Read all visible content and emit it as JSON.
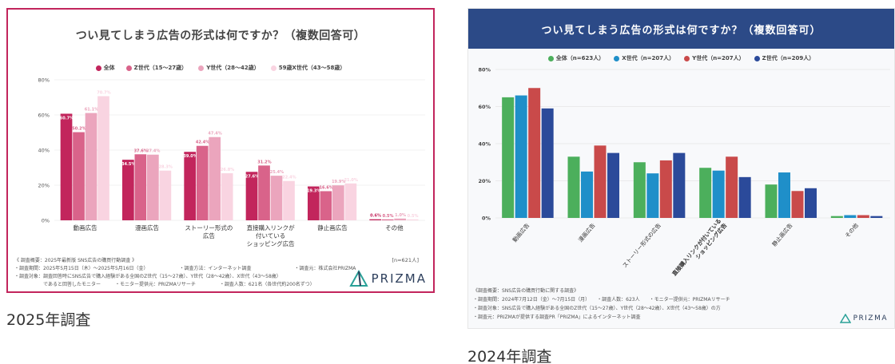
{
  "captions": {
    "a": "2025年調査",
    "b": "2024年調査"
  },
  "chart_data": [
    {
      "type": "bar",
      "title": "つい見てしまう広告の形式は何ですか？（複数回答可）",
      "categories": [
        "動画広告",
        "漫画広告",
        "ストーリー形式の広告",
        "直接購入リンクが付いているショッピング広告",
        "静止画広告",
        "その他"
      ],
      "category_lines": [
        [
          "動画広告"
        ],
        [
          "漫画広告"
        ],
        [
          "ストーリー形式の",
          "広告"
        ],
        [
          "直接購入リンクが",
          "付いている",
          "ショッピング広告"
        ],
        [
          "静止画広告"
        ],
        [
          "その他"
        ]
      ],
      "ylim": [
        0,
        80
      ],
      "yticks": [
        "0%",
        "20%",
        "40%",
        "60%",
        "80%"
      ],
      "series": [
        {
          "name": "全体",
          "color": "#c2255c",
          "values": [
            60.7,
            34.5,
            39.0,
            27.6,
            19.3,
            0.6
          ],
          "labels": [
            "60.7%",
            "34.5%",
            "39.0%",
            "27.6%",
            "19.3%",
            "0.6%"
          ]
        },
        {
          "name": "Z世代（15〜27歳）",
          "color": "#d9638a",
          "values": [
            50.2,
            37.6,
            42.4,
            31.2,
            16.6,
            0.5
          ],
          "labels": [
            "50.2%",
            "37.6%",
            "42.4%",
            "31.2%",
            "16.6%",
            "0.5%"
          ]
        },
        {
          "name": "Y世代（28〜42歳）",
          "color": "#eba5bd",
          "values": [
            61.1,
            37.4,
            47.4,
            25.4,
            19.9,
            1.0
          ],
          "labels": [
            "61.1%",
            "37.4%",
            "47.4%",
            "25.4%",
            "19.9%",
            "1.0%"
          ]
        },
        {
          "name": "59歳X世代（43〜58歳）",
          "color": "#f9d4e1",
          "values": [
            70.7,
            28.3,
            26.8,
            22.4,
            21.0,
            0.5
          ],
          "labels": [
            "70.7%",
            "28.3%",
            "26.8%",
            "22.4%",
            "21.0%",
            "0.5%"
          ]
        }
      ],
      "n_label": "[n=621人]",
      "notes": [
        "《 調査概要：2025年最新版 SNS広告の購買行動調査 》",
        "・調査期間：2025年5月15日（木）〜2025年5月16日（金）　　　　　　　・調査方法：インターネット調査　　　　　　　　　・調査元：株式会社PRIZMA",
        "・調査対象：調査回答時にSNS広告で購入経験がある全国のZ世代（15〜27歳）、Y世代（28〜42歳）、X世代（43〜58歳）",
        "　　　　　　であると回答したモニター　　　・モニター提供元：PRIZMAリサーチ　　　　　・調査人数：621名（各世代約200名ずつ）"
      ],
      "logo": "PRIZMA"
    },
    {
      "type": "bar",
      "title": "つい見てしまう広告の形式は何ですか？（複数回答可）",
      "categories": [
        "動画広告",
        "漫画広告",
        "ストーリー形式の広告",
        "直接購入リンクが付いているショッピング広告",
        "静止画広告",
        "その他"
      ],
      "category_lines": [
        [
          "動画広告"
        ],
        [
          "漫画広告"
        ],
        [
          "ストーリー形式の広告"
        ],
        [
          "直接購入リンクが付いている",
          "ショッピング広告"
        ],
        [
          "静止画広告"
        ],
        [
          "その他"
        ]
      ],
      "ylim": [
        0,
        80
      ],
      "yticks": [
        "0%",
        "20%",
        "40%",
        "60%",
        "80%"
      ],
      "series": [
        {
          "name": "全体（n=623人）",
          "color": "#4caf5c",
          "values": [
            65,
            33,
            30,
            27,
            18,
            1
          ]
        },
        {
          "name": "X世代（n=207人）",
          "color": "#1f8fc9",
          "values": [
            66,
            25,
            24,
            25.5,
            24.5,
            1.5
          ]
        },
        {
          "name": "Y世代（n=207人）",
          "color": "#c94a4a",
          "values": [
            70,
            39,
            31,
            33,
            14.5,
            1.5
          ]
        },
        {
          "name": "Z世代（n=209人）",
          "color": "#2b4a9a",
          "values": [
            59,
            35,
            35,
            22,
            16,
            1
          ]
        }
      ],
      "notes": [
        "《調査概要：SNS広告の購買行動に関する調査》",
        "・調査期間：2024年7月12日（金）〜7月15日（月）　　・調査人数：623人　　・モニター提供元：PRIZMAリサーチ",
        "・調査対象：SNS広告で購入経験がある全国のZ世代（15〜27歳）、Y世代（28〜42歳）、X世代（43〜58歳）の方",
        "・調査元：PRIZMAが提供する調査PR「PRIZMA」によるインターネット調査"
      ],
      "logo": "PRIZMA"
    }
  ]
}
